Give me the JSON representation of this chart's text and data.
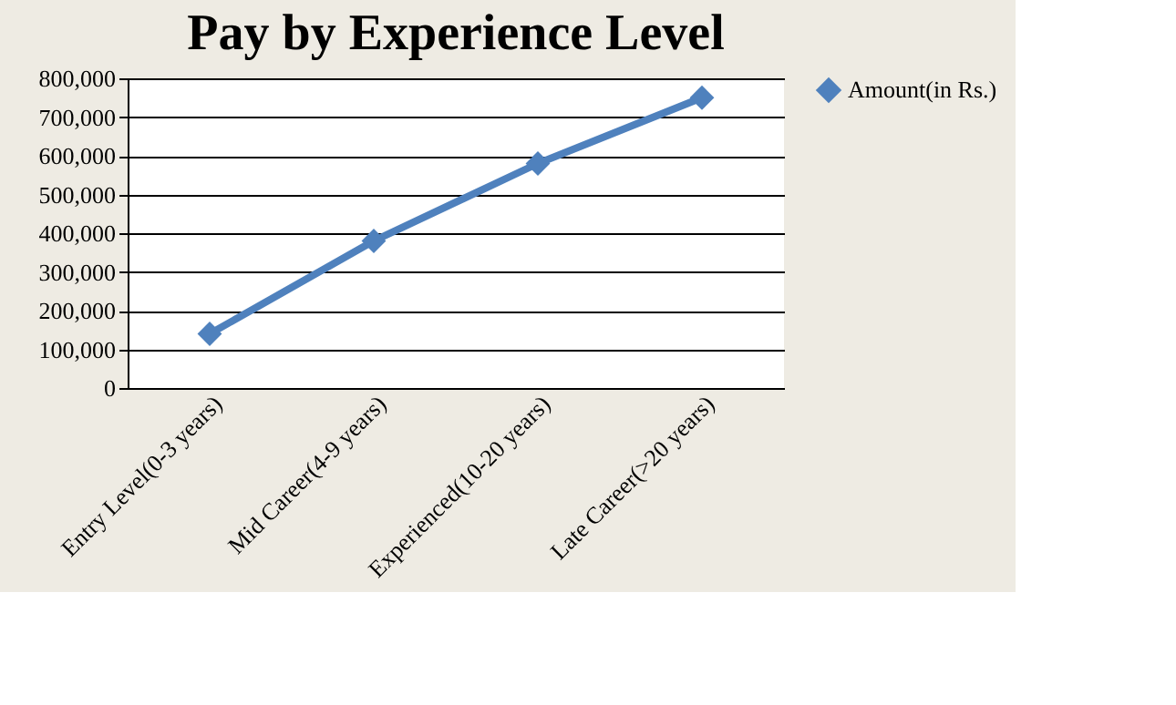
{
  "chart_data": {
    "type": "line",
    "title": "Pay by Experience Level",
    "categories": [
      "Entry Level(0-3 years)",
      "Mid Career(4-9 years)",
      "Experienced(10-20 years)",
      "Late Career(>20 years)"
    ],
    "series": [
      {
        "name": "Amount(in Rs.)",
        "color": "#4f81bd",
        "values": [
          140000,
          380000,
          580000,
          750000
        ]
      }
    ],
    "ylim": [
      0,
      800000
    ],
    "yticks": [
      0,
      {
        "value": 100000,
        "label": "100,000"
      },
      {
        "value": 200000,
        "label": "200,000"
      },
      {
        "value": 300000,
        "label": "300,000"
      },
      {
        "value": 400000,
        "label": "400,000"
      },
      {
        "value": 500000,
        "label": "500,000"
      },
      {
        "value": 600000,
        "label": "600,000"
      },
      {
        "value": 700000,
        "label": "700,000"
      },
      {
        "value": 800000,
        "label": "800,000"
      }
    ],
    "grid": "y",
    "legend": "right",
    "marker": "diamond",
    "line_style": "solid"
  }
}
